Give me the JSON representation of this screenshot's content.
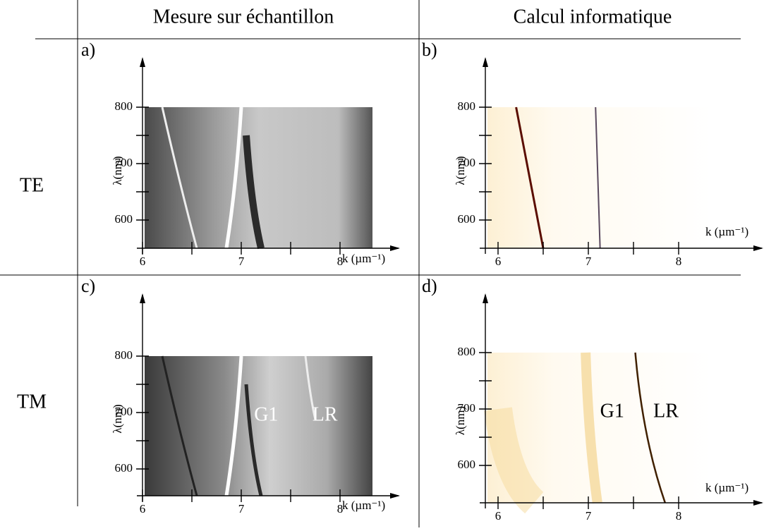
{
  "header": {
    "left": "Mesure sur échantillon",
    "right": "Calcul informatique"
  },
  "rows": [
    "TE",
    "TM"
  ],
  "panels": [
    {
      "label": "a)",
      "xlabel": "k (µm⁻¹)",
      "ylabel": "λ(nm)",
      "xticks": [
        6,
        7,
        8
      ],
      "yticks": [
        600,
        700,
        800
      ],
      "annotations": []
    },
    {
      "label": "b)",
      "xlabel": "k (µm⁻¹)",
      "ylabel": "λ(nm)",
      "xticks": [
        6,
        7,
        8
      ],
      "yticks": [
        600,
        700,
        800
      ],
      "annotations": []
    },
    {
      "label": "c)",
      "xlabel": "k (µm⁻¹)",
      "ylabel": "λ(nm)",
      "xticks": [
        6,
        7,
        8
      ],
      "yticks": [
        600,
        700,
        800
      ],
      "annotations": [
        "G1",
        "LR"
      ]
    },
    {
      "label": "d)",
      "xlabel": "k (µm⁻¹)",
      "ylabel": "λ(nm)",
      "xticks": [
        6,
        7,
        8
      ],
      "yticks": [
        600,
        700,
        800
      ],
      "annotations": [
        "G1",
        "LR"
      ]
    }
  ]
}
